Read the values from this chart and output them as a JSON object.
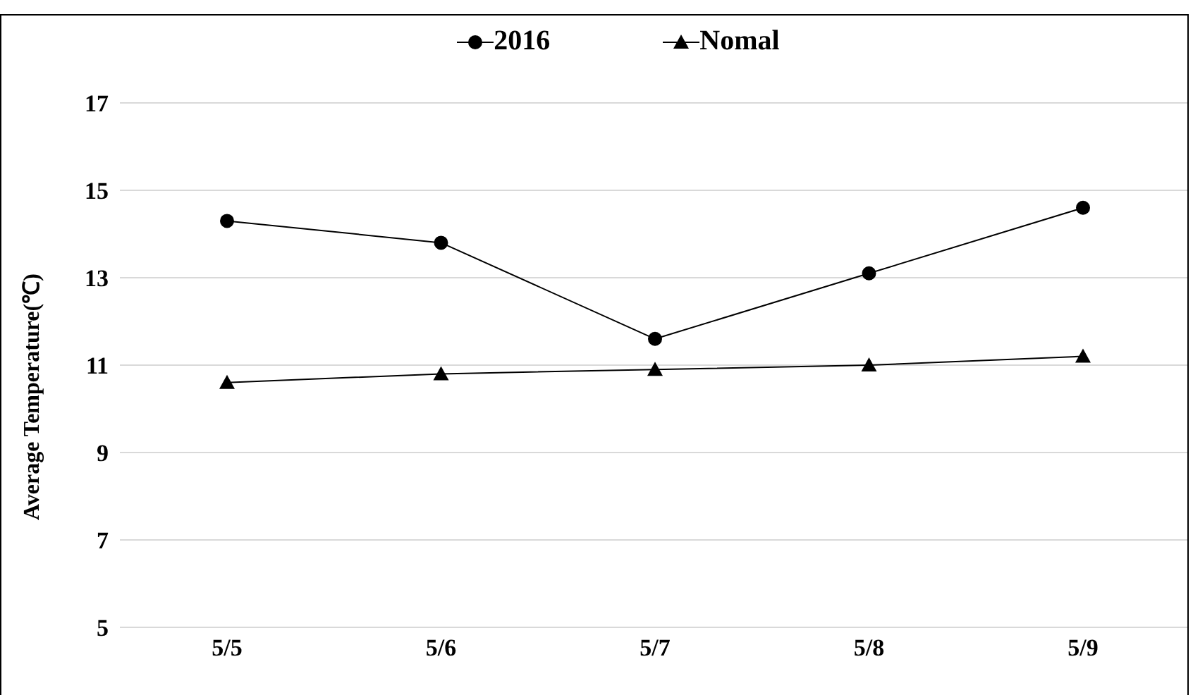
{
  "chart_data": {
    "type": "line",
    "ylabel": "Average Temperature(℃)",
    "categories": [
      "5/5",
      "5/6",
      "5/7",
      "5/8",
      "5/9"
    ],
    "series": [
      {
        "name": "2016",
        "color": "#000000",
        "marker": "circle",
        "values": [
          14.3,
          13.8,
          11.6,
          13.1,
          14.6
        ]
      },
      {
        "name": "Nomal",
        "color": "#000000",
        "marker": "triangle",
        "values": [
          10.6,
          10.8,
          10.9,
          11.0,
          11.2
        ]
      }
    ],
    "ylim": [
      5,
      17
    ],
    "yticks": [
      5,
      7,
      9,
      11,
      13,
      15,
      17
    ],
    "grid": "y",
    "legend": "top",
    "line_style": "solid"
  }
}
